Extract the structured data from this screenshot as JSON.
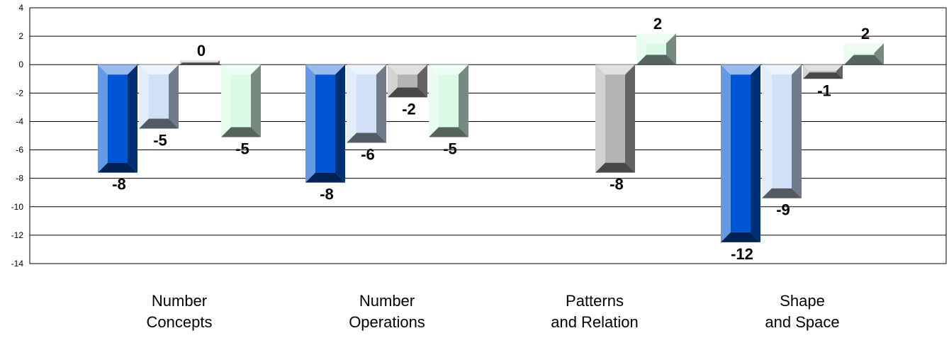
{
  "chart_data": {
    "type": "bar",
    "title": "",
    "xlabel": "",
    "ylabel": "",
    "ylim": [
      -14,
      4
    ],
    "yticks": [
      4,
      2,
      0,
      -2,
      -4,
      -6,
      -8,
      -10,
      -12,
      -14
    ],
    "grid": true,
    "legend": "none",
    "categories": [
      [
        "Number",
        "Concepts"
      ],
      [
        "Number",
        "Operations"
      ],
      [
        "Patterns",
        "and Relation"
      ],
      [
        "Shape",
        "and Space"
      ]
    ],
    "series": [
      {
        "color": "#0055d4",
        "values": [
          -7.6,
          -8.3,
          null,
          -12.5
        ],
        "labels": [
          "-8",
          "-8",
          "",
          "-12"
        ]
      },
      {
        "color": "#cfe0f8",
        "values": [
          -4.5,
          -5.5,
          null,
          -9.4
        ],
        "labels": [
          "-5",
          "-6",
          "",
          "-9"
        ]
      },
      {
        "color": "#b4b4b4",
        "values": [
          0.3,
          -2.3,
          -7.6,
          -1.0
        ],
        "labels": [
          "0",
          "-2",
          "-8",
          "-1"
        ]
      },
      {
        "color": "#d9fbe6",
        "values": [
          -5.1,
          -5.1,
          2.2,
          1.5
        ],
        "labels": [
          "-5",
          "-5",
          "2",
          "2"
        ]
      }
    ]
  }
}
